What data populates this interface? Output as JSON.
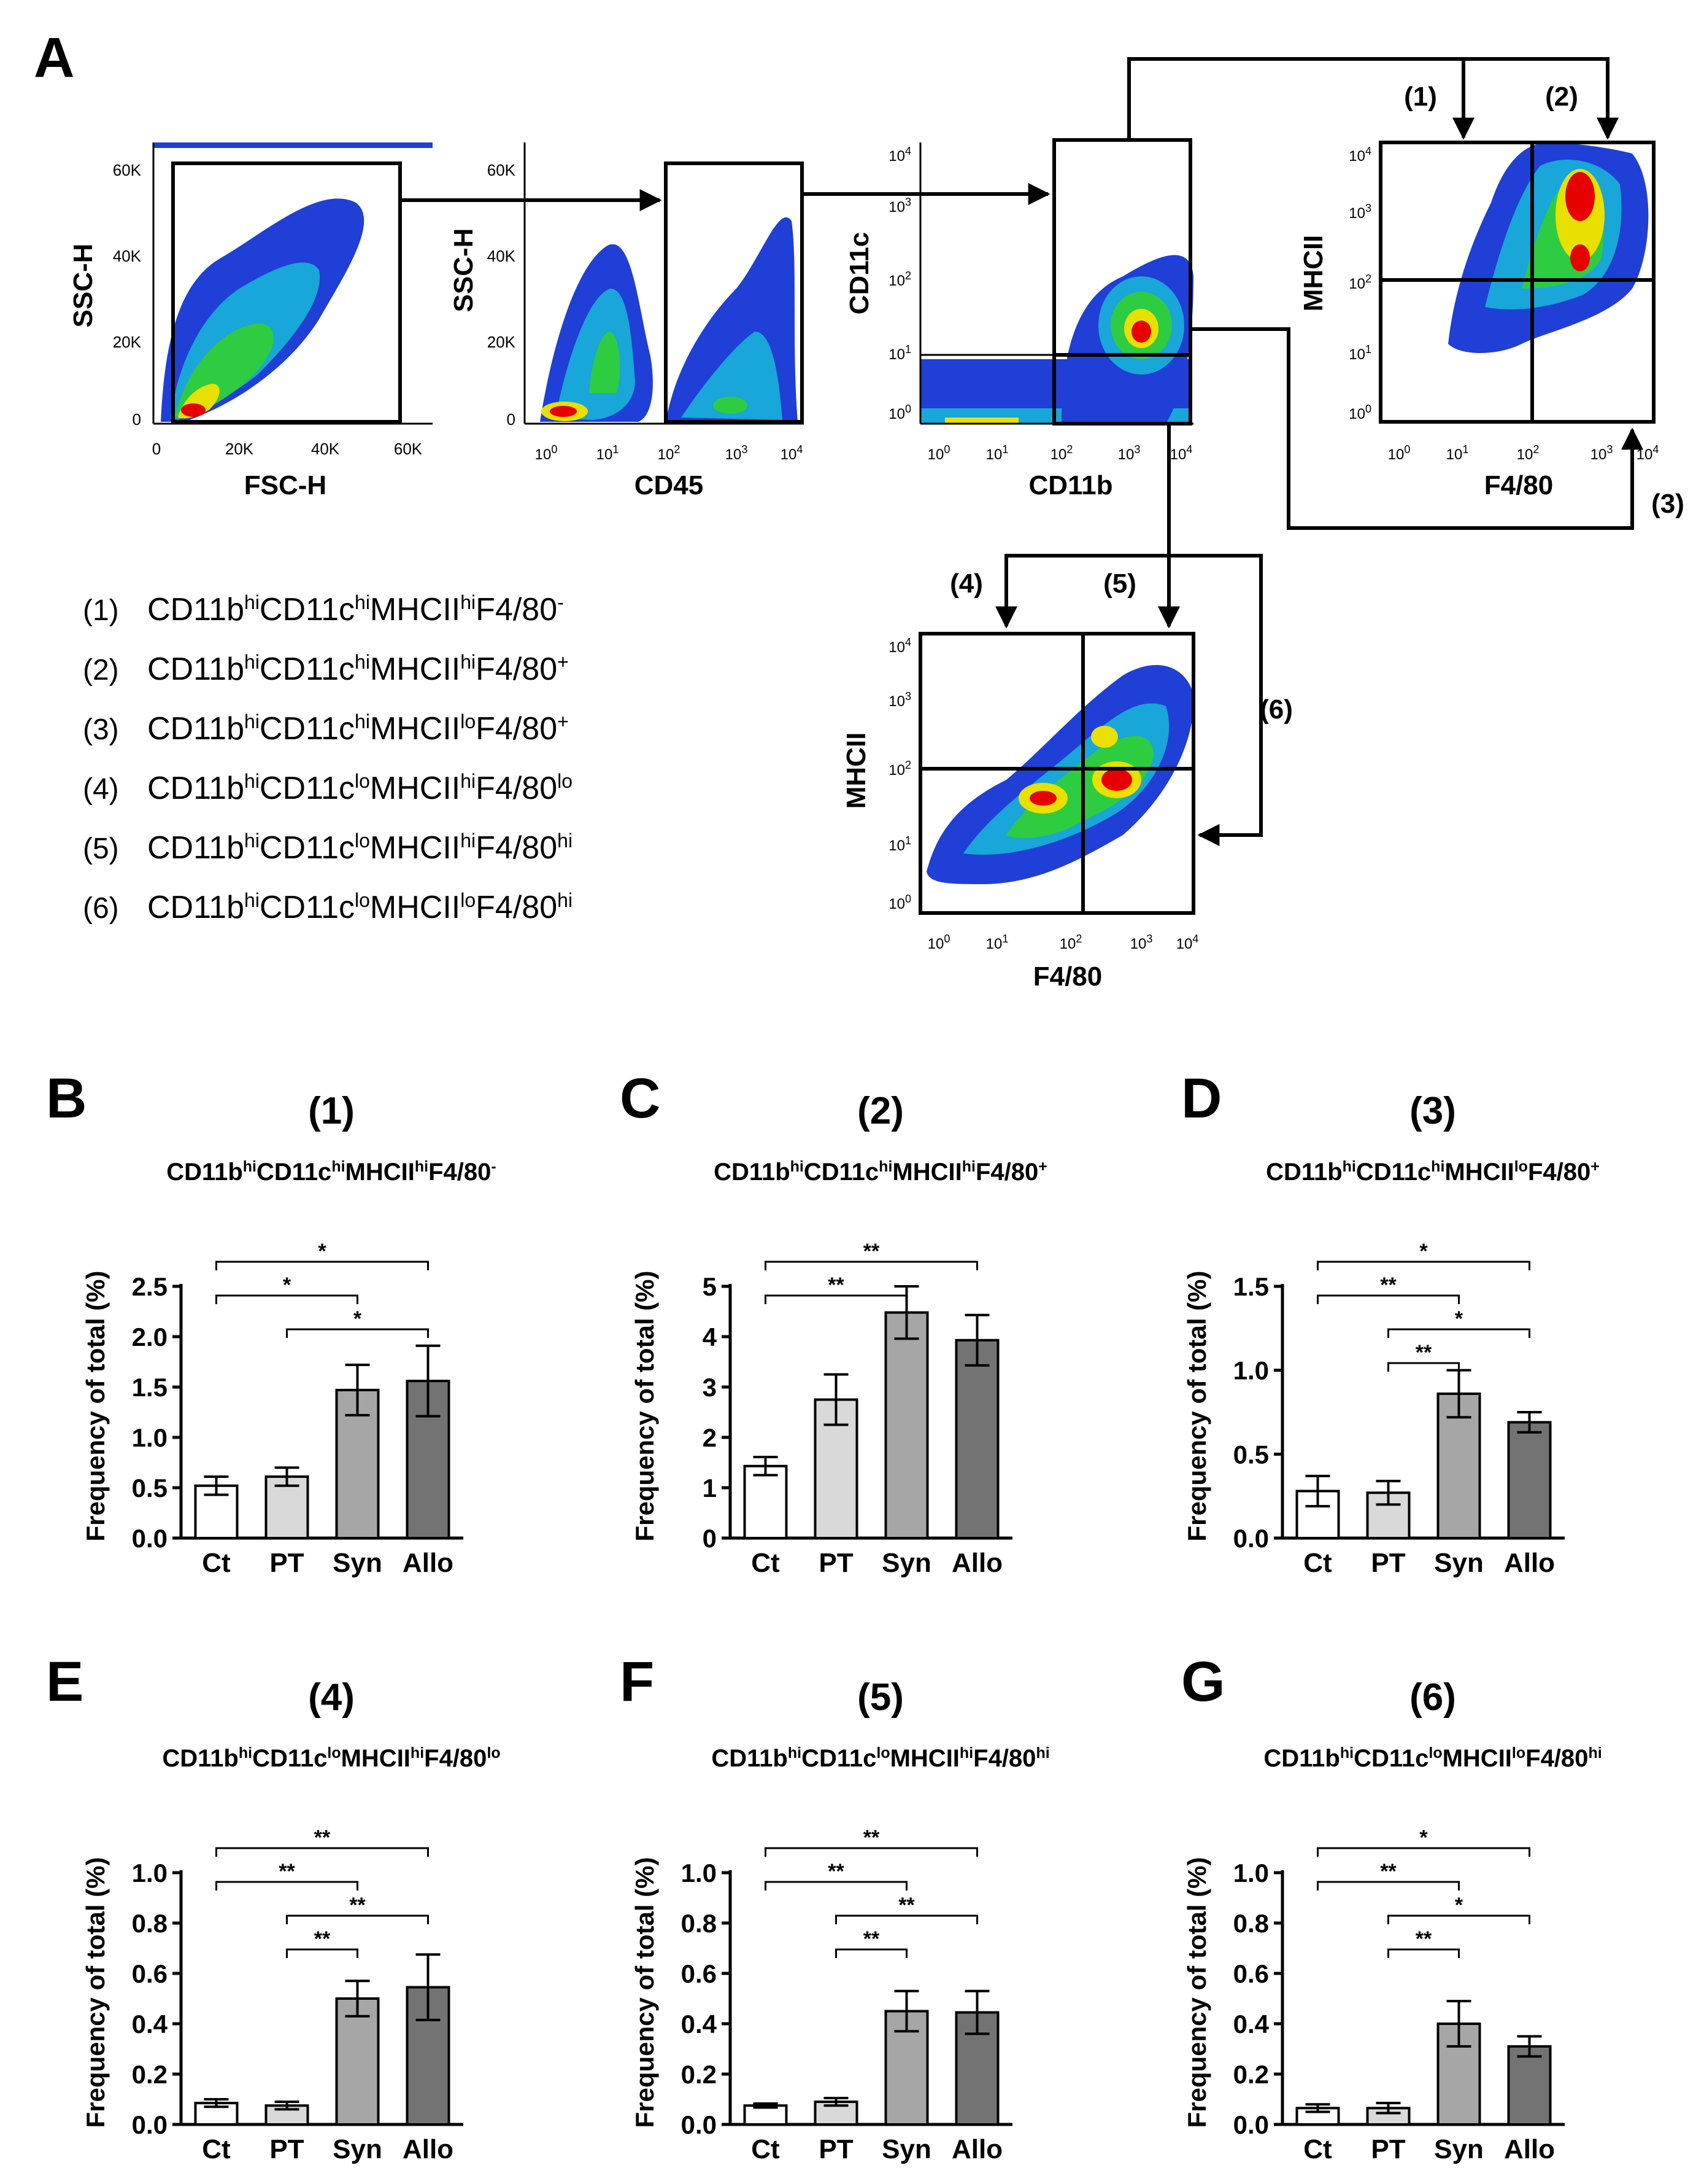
{
  "panel_letters": [
    "A",
    "B",
    "C",
    "D",
    "E",
    "F",
    "G"
  ],
  "flow": {
    "plot1": {
      "xlabel": "FSC-H",
      "ylabel": "SSC-H",
      "xticks": [
        "0",
        "20K",
        "40K",
        "60K"
      ],
      "yticks": [
        "0",
        "20K",
        "40K",
        "60K"
      ]
    },
    "plot2": {
      "xlabel": "CD45",
      "ylabel": "SSC-H",
      "xticks": [
        "10^0",
        "10^1",
        "10^2",
        "10^3",
        "10^4"
      ],
      "yticks": [
        "0",
        "20K",
        "40K",
        "60K"
      ]
    },
    "plot3": {
      "xlabel": "CD11b",
      "ylabel": "CD11c",
      "xticks": [
        "10^0",
        "10^1",
        "10^2",
        "10^3",
        "10^4"
      ],
      "yticks": [
        "10^0",
        "10^1",
        "10^2",
        "10^3",
        "10^4"
      ]
    },
    "plot4": {
      "xlabel": "F4/80",
      "ylabel": "MHCII",
      "xticks": [
        "10^0",
        "10^1",
        "10^2",
        "10^3",
        "10^4"
      ],
      "yticks": [
        "10^0",
        "10^1",
        "10^2",
        "10^3",
        "10^4"
      ]
    },
    "plot5": {
      "xlabel": "F4/80",
      "ylabel": "MHCII",
      "xticks": [
        "10^0",
        "10^1",
        "10^2",
        "10^3",
        "10^4"
      ],
      "yticks": [
        "10^0",
        "10^1",
        "10^2",
        "10^3",
        "10^4"
      ]
    },
    "gate_labels": [
      "(1)",
      "(2)",
      "(3)",
      "(4)",
      "(5)",
      "(6)"
    ]
  },
  "populations": [
    {
      "num": "(1)",
      "parts": [
        [
          "CD11b",
          ""
        ],
        [
          "hi",
          "sup"
        ],
        [
          "CD11c",
          ""
        ],
        [
          "hi",
          "sup"
        ],
        [
          "MHCII",
          ""
        ],
        [
          "hi",
          "sup"
        ],
        [
          "F4/80",
          ""
        ],
        [
          "-",
          "sup"
        ]
      ]
    },
    {
      "num": "(2)",
      "parts": [
        [
          "CD11b",
          ""
        ],
        [
          "hi",
          "sup"
        ],
        [
          "CD11c",
          ""
        ],
        [
          "hi",
          "sup"
        ],
        [
          "MHCII",
          ""
        ],
        [
          "hi",
          "sup"
        ],
        [
          "F4/80",
          ""
        ],
        [
          "+",
          "sup"
        ]
      ]
    },
    {
      "num": "(3)",
      "parts": [
        [
          "CD11b",
          ""
        ],
        [
          "hi",
          "sup"
        ],
        [
          "CD11c",
          ""
        ],
        [
          "hi",
          "sup"
        ],
        [
          "MHCII",
          ""
        ],
        [
          "lo",
          "sup"
        ],
        [
          "F4/80",
          ""
        ],
        [
          "+",
          "sup"
        ]
      ]
    },
    {
      "num": "(4)",
      "parts": [
        [
          "CD11b",
          ""
        ],
        [
          "hi",
          "sup"
        ],
        [
          "CD11c",
          ""
        ],
        [
          "lo",
          "sup"
        ],
        [
          "MHCII",
          ""
        ],
        [
          "hi",
          "sup"
        ],
        [
          "F4/80",
          ""
        ],
        [
          "lo",
          "sup"
        ]
      ]
    },
    {
      "num": "(5)",
      "parts": [
        [
          "CD11b",
          ""
        ],
        [
          "hi",
          "sup"
        ],
        [
          "CD11c",
          ""
        ],
        [
          "lo",
          "sup"
        ],
        [
          "MHCII",
          ""
        ],
        [
          "hi",
          "sup"
        ],
        [
          "F4/80",
          ""
        ],
        [
          "hi",
          "sup"
        ]
      ]
    },
    {
      "num": "(6)",
      "parts": [
        [
          "CD11b",
          ""
        ],
        [
          "hi",
          "sup"
        ],
        [
          "CD11c",
          ""
        ],
        [
          "lo",
          "sup"
        ],
        [
          "MHCII",
          ""
        ],
        [
          "lo",
          "sup"
        ],
        [
          "F4/80",
          ""
        ],
        [
          "hi",
          "sup"
        ]
      ]
    }
  ],
  "colors": {
    "Ct": "#ffffff",
    "PT": "#d9d9d9",
    "Syn": "#a6a6a6",
    "Allo": "#737373",
    "axis": "#000000",
    "density_low": "#1f3fd6",
    "density_mid": "#2ecc40",
    "density_high": "#e8e000",
    "density_peak": "#e60000"
  },
  "chart_data": [
    {
      "panel": "B",
      "type": "bar",
      "title": "(1)",
      "subtitle": [
        [
          "CD11b",
          ""
        ],
        [
          "hi",
          "sup"
        ],
        [
          "CD11c",
          ""
        ],
        [
          "hi",
          "sup"
        ],
        [
          "MHCII",
          ""
        ],
        [
          "hi",
          "sup"
        ],
        [
          "F4/80",
          ""
        ],
        [
          "-",
          "sup"
        ]
      ],
      "categories": [
        "Ct",
        "PT",
        "Syn",
        "Allo"
      ],
      "values": [
        0.52,
        0.61,
        1.47,
        1.56
      ],
      "errors": [
        0.09,
        0.09,
        0.25,
        0.35
      ],
      "ylabel": "Frequency of total (%)",
      "ylim": [
        0,
        2.5
      ],
      "yticks": [
        "0.0",
        "0.5",
        "1.0",
        "1.5",
        "2.0",
        "2.5"
      ],
      "significance": [
        {
          "from": 0,
          "to": 3,
          "label": "*"
        },
        {
          "from": 0,
          "to": 2,
          "label": "*"
        },
        {
          "from": 1,
          "to": 3,
          "label": "*"
        }
      ]
    },
    {
      "panel": "C",
      "type": "bar",
      "title": "(2)",
      "subtitle": [
        [
          "CD11b",
          ""
        ],
        [
          "hi",
          "sup"
        ],
        [
          "CD11c",
          ""
        ],
        [
          "hi",
          "sup"
        ],
        [
          "MHCII",
          ""
        ],
        [
          "hi",
          "sup"
        ],
        [
          "F4/80",
          ""
        ],
        [
          "+",
          "sup"
        ]
      ],
      "categories": [
        "Ct",
        "PT",
        "Syn",
        "Allo"
      ],
      "values": [
        1.43,
        2.75,
        4.48,
        3.93
      ],
      "errors": [
        0.18,
        0.5,
        0.52,
        0.5
      ],
      "ylabel": "Frequency of total (%)",
      "ylim": [
        0,
        5
      ],
      "yticks": [
        "0",
        "1",
        "2",
        "3",
        "4",
        "5"
      ],
      "significance": [
        {
          "from": 0,
          "to": 3,
          "label": "**"
        },
        {
          "from": 0,
          "to": 2,
          "label": "**"
        }
      ]
    },
    {
      "panel": "D",
      "type": "bar",
      "title": "(3)",
      "subtitle": [
        [
          "CD11b",
          ""
        ],
        [
          "hi",
          "sup"
        ],
        [
          "CD11c",
          ""
        ],
        [
          "hi",
          "sup"
        ],
        [
          "MHCII",
          ""
        ],
        [
          "lo",
          "sup"
        ],
        [
          "F4/80",
          ""
        ],
        [
          "+",
          "sup"
        ]
      ],
      "categories": [
        "Ct",
        "PT",
        "Syn",
        "Allo"
      ],
      "values": [
        0.28,
        0.27,
        0.86,
        0.69
      ],
      "errors": [
        0.09,
        0.07,
        0.14,
        0.06
      ],
      "ylabel": "Frequency of total (%)",
      "ylim": [
        0,
        1.5
      ],
      "yticks": [
        "0.0",
        "0.5",
        "1.0",
        "1.5"
      ],
      "significance": [
        {
          "from": 0,
          "to": 3,
          "label": "*"
        },
        {
          "from": 0,
          "to": 2,
          "label": "**"
        },
        {
          "from": 1,
          "to": 3,
          "label": "*"
        },
        {
          "from": 1,
          "to": 2,
          "label": "**"
        }
      ]
    },
    {
      "panel": "E",
      "type": "bar",
      "title": "(4)",
      "subtitle": [
        [
          "CD11b",
          ""
        ],
        [
          "hi",
          "sup"
        ],
        [
          "CD11c",
          ""
        ],
        [
          "lo",
          "sup"
        ],
        [
          "MHCII",
          ""
        ],
        [
          "hi",
          "sup"
        ],
        [
          "F4/80",
          ""
        ],
        [
          "lo",
          "sup"
        ]
      ],
      "categories": [
        "Ct",
        "PT",
        "Syn",
        "Allo"
      ],
      "values": [
        0.085,
        0.075,
        0.5,
        0.545
      ],
      "errors": [
        0.015,
        0.015,
        0.07,
        0.13
      ],
      "ylabel": "Frequency of total (%)",
      "ylim": [
        0,
        1.0
      ],
      "yticks": [
        "0.0",
        "0.2",
        "0.4",
        "0.6",
        "0.8",
        "1.0"
      ],
      "significance": [
        {
          "from": 0,
          "to": 3,
          "label": "**"
        },
        {
          "from": 0,
          "to": 2,
          "label": "**"
        },
        {
          "from": 1,
          "to": 3,
          "label": "**"
        },
        {
          "from": 1,
          "to": 2,
          "label": "**"
        }
      ]
    },
    {
      "panel": "F",
      "type": "bar",
      "title": "(5)",
      "subtitle": [
        [
          "CD11b",
          ""
        ],
        [
          "hi",
          "sup"
        ],
        [
          "CD11c",
          ""
        ],
        [
          "lo",
          "sup"
        ],
        [
          "MHCII",
          ""
        ],
        [
          "hi",
          "sup"
        ],
        [
          "F4/80",
          ""
        ],
        [
          "hi",
          "sup"
        ]
      ],
      "categories": [
        "Ct",
        "PT",
        "Syn",
        "Allo"
      ],
      "values": [
        0.075,
        0.09,
        0.45,
        0.445
      ],
      "errors": [
        0.008,
        0.015,
        0.08,
        0.085
      ],
      "ylabel": "Frequency of total (%)",
      "ylim": [
        0,
        1.0
      ],
      "yticks": [
        "0.0",
        "0.2",
        "0.4",
        "0.6",
        "0.8",
        "1.0"
      ],
      "significance": [
        {
          "from": 0,
          "to": 3,
          "label": "**"
        },
        {
          "from": 0,
          "to": 2,
          "label": "**"
        },
        {
          "from": 1,
          "to": 3,
          "label": "**"
        },
        {
          "from": 1,
          "to": 2,
          "label": "**"
        }
      ]
    },
    {
      "panel": "G",
      "type": "bar",
      "title": "(6)",
      "subtitle": [
        [
          "CD11b",
          ""
        ],
        [
          "hi",
          "sup"
        ],
        [
          "CD11c",
          ""
        ],
        [
          "lo",
          "sup"
        ],
        [
          "MHCII",
          ""
        ],
        [
          "lo",
          "sup"
        ],
        [
          "F4/80",
          ""
        ],
        [
          "hi",
          "sup"
        ]
      ],
      "categories": [
        "Ct",
        "PT",
        "Syn",
        "Allo"
      ],
      "values": [
        0.065,
        0.065,
        0.4,
        0.31
      ],
      "errors": [
        0.015,
        0.02,
        0.09,
        0.04
      ],
      "ylabel": "Frequency of total (%)",
      "ylim": [
        0,
        1.0
      ],
      "yticks": [
        "0.0",
        "0.2",
        "0.4",
        "0.6",
        "0.8",
        "1.0"
      ],
      "significance": [
        {
          "from": 0,
          "to": 3,
          "label": "*"
        },
        {
          "from": 0,
          "to": 2,
          "label": "**"
        },
        {
          "from": 1,
          "to": 3,
          "label": "*"
        },
        {
          "from": 1,
          "to": 2,
          "label": "**"
        }
      ]
    }
  ]
}
